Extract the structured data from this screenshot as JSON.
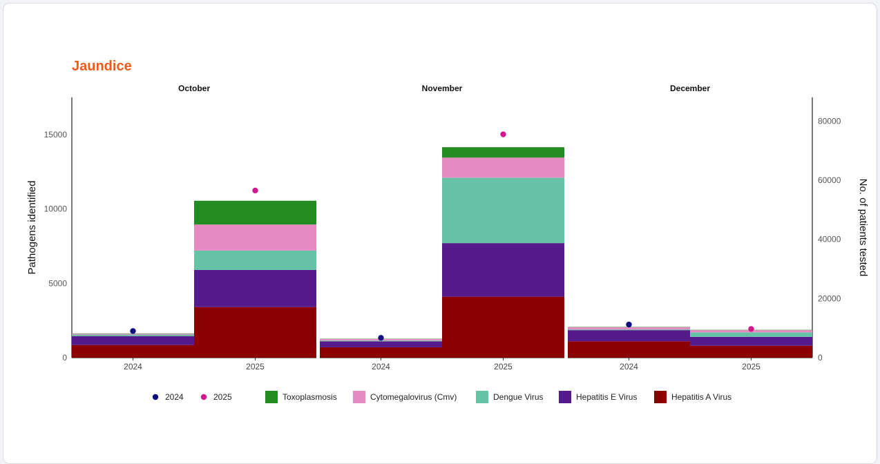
{
  "title": "Jaundice",
  "colors": {
    "title": "#f05a1a",
    "dot_2024": "#0d0d80",
    "dot_2025": "#d4178f"
  },
  "chart_data": {
    "type": "bar",
    "subtype": "faceted stacked bar with dot overlay (dual axis)",
    "facets": [
      "October",
      "November",
      "December"
    ],
    "categories": [
      "2024",
      "2025"
    ],
    "ylabel": "Pathogens identified",
    "ylim": [
      0,
      17500
    ],
    "yticks": [
      0,
      5000,
      10000,
      15000
    ],
    "y2label": "No. of patients tested",
    "y2lim": [
      0,
      88000
    ],
    "y2ticks": [
      0,
      20000,
      40000,
      60000,
      80000
    ],
    "grid": false,
    "legend_position": "bottom",
    "series": [
      {
        "name": "Hepatitis A Virus",
        "color": "#8b0000",
        "values": {
          "October": [
            850,
            3400
          ],
          "November": [
            700,
            4100
          ],
          "December": [
            1100,
            800
          ]
        }
      },
      {
        "name": "Hepatitis E Virus",
        "color": "#551a8b",
        "values": {
          "October": [
            600,
            2500
          ],
          "November": [
            400,
            3600
          ],
          "December": [
            750,
            600
          ]
        }
      },
      {
        "name": "Dengue Virus",
        "color": "#66c2a5",
        "values": {
          "October": [
            100,
            1300
          ],
          "November": [
            50,
            4400
          ],
          "December": [
            50,
            300
          ]
        }
      },
      {
        "name": "Cytomegalovirus (Cmv)",
        "color": "#e78ac3",
        "values": {
          "October": [
            60,
            1750
          ],
          "November": [
            100,
            1350
          ],
          "December": [
            150,
            150
          ]
        }
      },
      {
        "name": "Toxoplasmosis",
        "color": "#228b22",
        "values": {
          "October": [
            20,
            1600
          ],
          "November": [
            20,
            700
          ],
          "December": [
            20,
            20
          ]
        }
      }
    ],
    "points": [
      {
        "name": "2024",
        "color": "#0d0d80",
        "axis": "right",
        "values": {
          "October": 9000,
          "November": 6700,
          "December": 11200
        }
      },
      {
        "name": "2025",
        "color": "#d4178f",
        "axis": "right",
        "values": {
          "October": 56500,
          "November": 75500,
          "December": 9700
        }
      }
    ],
    "legend": [
      "2024",
      "2025",
      "Toxoplasmosis",
      "Cytomegalovirus (Cmv)",
      "Dengue Virus",
      "Hepatitis E Virus",
      "Hepatitis A Virus"
    ]
  }
}
